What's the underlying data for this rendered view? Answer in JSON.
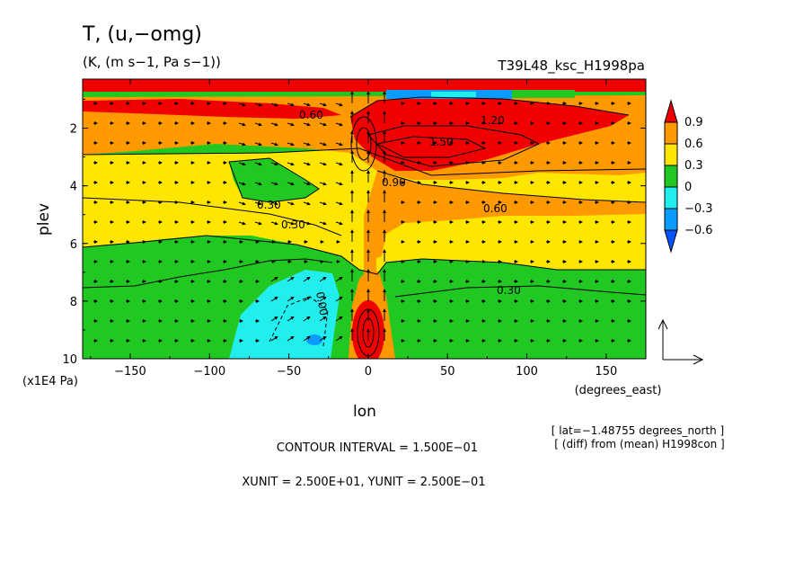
{
  "chart_data": {
    "type": "heatmap",
    "title": "T, (u,−omg)",
    "units_line": "(K, (m s−1, Pa s−1))",
    "run_name": "T39L48_ksc_H1998pa",
    "xlabel": "lon",
    "x_units": "(degrees_east)",
    "ylabel": "plev",
    "y_units": "(x1E4 Pa)",
    "x_ticks": [
      "−150",
      "−100",
      "−50",
      "0",
      "50",
      "100",
      "150"
    ],
    "x_tick_values": [
      -150,
      -100,
      -50,
      0,
      50,
      100,
      150
    ],
    "y_ticks": [
      "2",
      "4",
      "6",
      "8",
      "10"
    ],
    "y_tick_values": [
      2,
      4,
      6,
      8,
      10
    ],
    "xlim": [
      -180,
      175
    ],
    "ylim": [
      10,
      0.3
    ],
    "colorbar": {
      "labels": [
        "0.9",
        "0.6",
        "0.3",
        "0",
        "−0.3",
        "−0.6"
      ],
      "colors": [
        "#f00000",
        "#ff9900",
        "#ffe600",
        "#22c822",
        "#22eeee",
        "#0a9bff",
        "#0055ff"
      ]
    },
    "contour_labels": [
      "0.60",
      "1.50",
      "1.20",
      "0.90",
      "0.60",
      "0.30",
      "0.30",
      "0.30",
      "0.00"
    ],
    "contour_interval_text": "CONTOUR INTERVAL = 1.500E−01",
    "unit_vector_text": "XUNIT = 2.500E+01, YUNIT = 2.500E−01",
    "lat_note": "[ lat=−1.48755 degrees_north ]",
    "diff_note": "[ (diff) from (mean) H1998con ]"
  }
}
